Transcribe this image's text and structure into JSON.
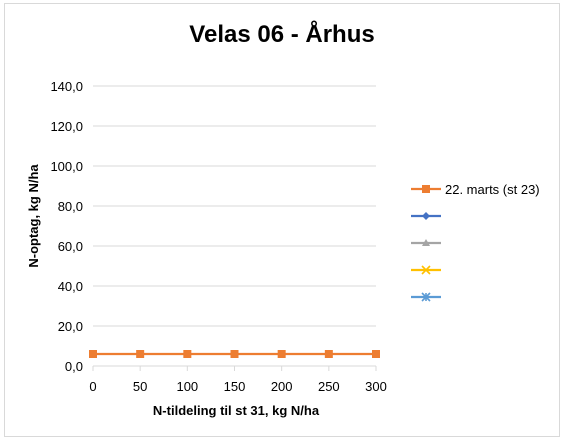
{
  "chart_data": {
    "type": "line",
    "title": "Velas 06 - Århus",
    "xlabel": "N-tildeling til st 31, kg N/ha",
    "ylabel": "N-optag, kg N/ha",
    "xlim": [
      0,
      300
    ],
    "ylim": [
      0,
      140
    ],
    "x_ticks": [
      "0",
      "50",
      "100",
      "150",
      "200",
      "250",
      "300"
    ],
    "y_ticks": [
      "0,0",
      "20,0",
      "40,0",
      "60,0",
      "80,0",
      "100,0",
      "120,0",
      "140,0"
    ],
    "grid": true,
    "legend_position": "right",
    "series": [
      {
        "name": "22. marts (st 23)",
        "color": "#ED7D31",
        "marker": "square",
        "x": [
          0,
          50,
          100,
          150,
          200,
          250,
          300
        ],
        "values": [
          6,
          6,
          6,
          6,
          6,
          6,
          6
        ]
      },
      {
        "name": "",
        "color": "#4472C4",
        "marker": "diamond",
        "x": [],
        "values": []
      },
      {
        "name": "",
        "color": "#A5A5A5",
        "marker": "triangle",
        "x": [],
        "values": []
      },
      {
        "name": "",
        "color": "#FFC000",
        "marker": "x",
        "x": [],
        "values": []
      },
      {
        "name": "",
        "color": "#5B9BD5",
        "marker": "star",
        "x": [],
        "values": []
      }
    ]
  }
}
